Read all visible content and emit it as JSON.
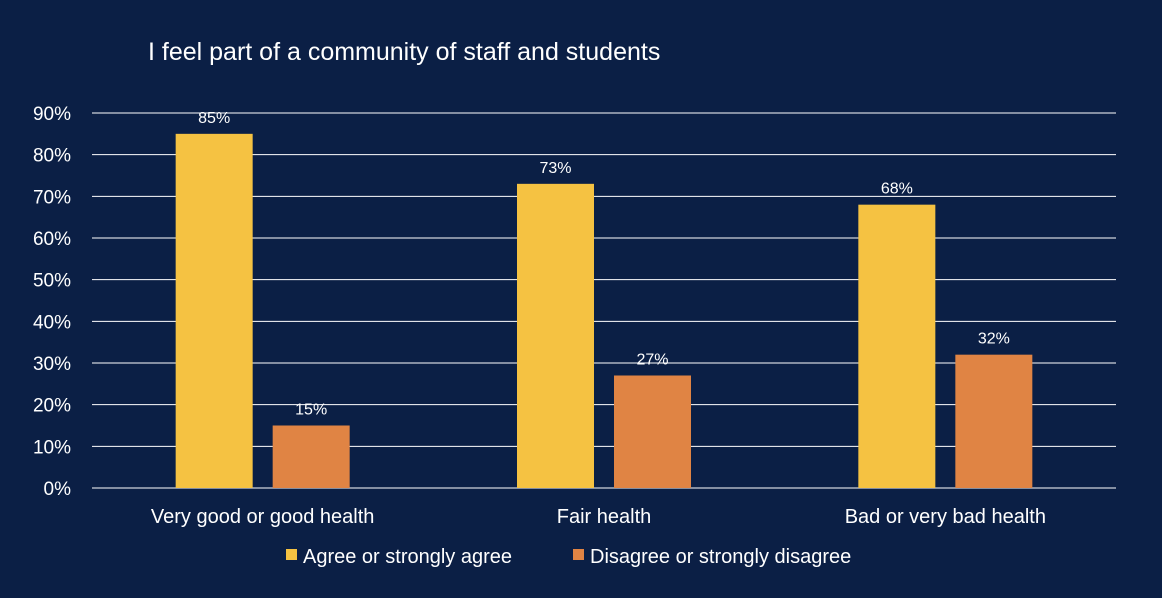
{
  "colors": {
    "background": "#0b1f45",
    "grid": "#ffffff",
    "text": "#ffffff",
    "agree": "#f5c242",
    "disagree": "#e08444"
  },
  "chart_data": {
    "type": "bar",
    "title": "I feel part of a community of staff and students",
    "xlabel": "",
    "ylabel": "",
    "ylim": [
      0,
      90
    ],
    "yticks": [
      0,
      10,
      20,
      30,
      40,
      50,
      60,
      70,
      80,
      90
    ],
    "ytick_labels": [
      "0%",
      "10%",
      "20%",
      "30%",
      "40%",
      "50%",
      "60%",
      "70%",
      "80%",
      "90%"
    ],
    "grid": true,
    "legend_position": "bottom",
    "categories": [
      "Very good or good health",
      "Fair health",
      "Bad or very bad health"
    ],
    "series": [
      {
        "name": "Agree or strongly agree",
        "color": "#f5c242",
        "values": [
          85,
          73,
          68
        ],
        "labels": [
          "85%",
          "73%",
          "68%"
        ]
      },
      {
        "name": "Disagree or strongly disagree",
        "color": "#e08444",
        "values": [
          15,
          27,
          32
        ],
        "labels": [
          "15%",
          "27%",
          "32%"
        ]
      }
    ]
  }
}
